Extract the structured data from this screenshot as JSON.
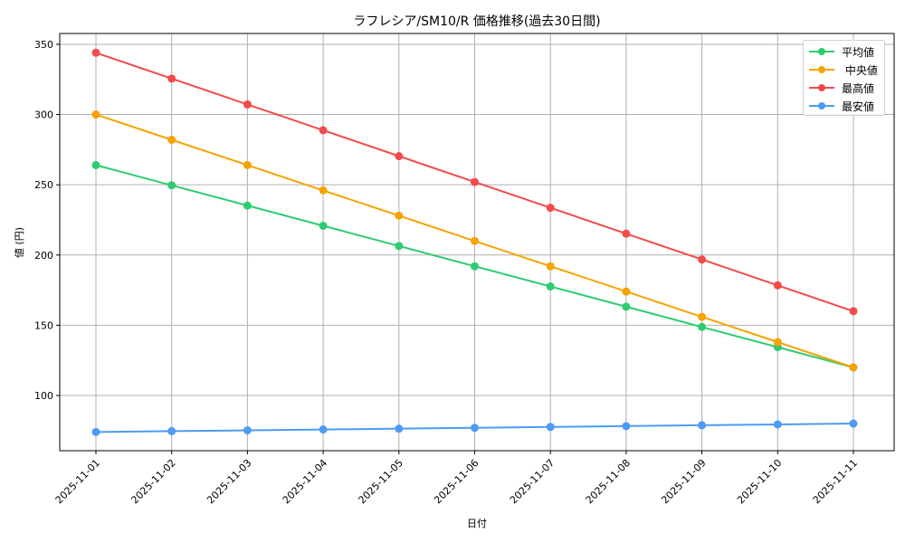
{
  "chart_data": {
    "type": "line",
    "title": "ラフレシア/SM10/R 価格推移(過去30日間)",
    "xlabel": "日付",
    "ylabel": "値 (円)",
    "x": [
      "2025-11-01",
      "2025-11-02",
      "2025-11-03",
      "2025-11-04",
      "2025-11-05",
      "2025-11-06",
      "2025-11-07",
      "2025-11-08",
      "2025-11-09",
      "2025-11-10",
      "2025-11-11"
    ],
    "yticks": [
      100,
      150,
      200,
      250,
      300,
      350
    ],
    "ylim": [
      60.7,
      357.7
    ],
    "grid": true,
    "legend_position": "upper right",
    "series": [
      {
        "name": "平均値",
        "color": "#2ecc71",
        "values": [
          264.0,
          249.6,
          235.2,
          220.8,
          206.4,
          192.0,
          177.6,
          163.2,
          148.8,
          134.4,
          120.0
        ]
      },
      {
        "name": "中央値",
        "color": "#f5a300",
        "values": [
          300.0,
          282.0,
          264.0,
          246.0,
          228.0,
          210.0,
          192.0,
          174.0,
          156.0,
          138.0,
          120.0
        ]
      },
      {
        "name": "最高値",
        "color": "#f24b4b",
        "values": [
          344.0,
          325.6,
          307.2,
          288.8,
          270.4,
          252.0,
          233.6,
          215.2,
          196.8,
          178.4,
          160.0
        ]
      },
      {
        "name": "最安値",
        "color": "#4d9bf5",
        "values": [
          74.0,
          74.6,
          75.2,
          75.8,
          76.4,
          77.0,
          77.6,
          78.2,
          78.8,
          79.4,
          80.0
        ]
      }
    ]
  },
  "legend": {
    "items": [
      {
        "label": "平均値",
        "color": "#2ecc71"
      },
      {
        "label": " 中央値",
        "color": "#f5a300"
      },
      {
        "label": "最高値",
        "color": "#f24b4b"
      },
      {
        "label": "最安値",
        "color": "#4d9bf5"
      }
    ]
  }
}
